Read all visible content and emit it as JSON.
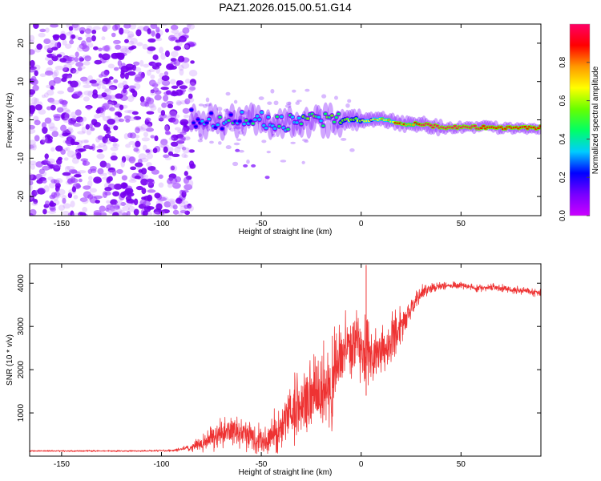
{
  "figure": {
    "title": "PAZ1.2026.015.00.51.G14"
  },
  "chart_data": [
    {
      "type": "heatmap",
      "title": "PAZ1.2026.015.00.51.G14",
      "xlabel": "Height of straight line (km)",
      "ylabel": "Frequency (Hz)",
      "xlim": [
        -166,
        90
      ],
      "ylim": [
        -25,
        25
      ],
      "xticks": [
        -150,
        -100,
        -50,
        0,
        50
      ],
      "yticks": [
        -20,
        -10,
        0,
        10,
        20
      ],
      "colorbar": {
        "label": "Normalized spectral amplitude",
        "range": [
          0.0,
          1.0
        ],
        "ticks": [
          "0.0",
          "0.2",
          "0.4",
          "0.6",
          "0.8"
        ],
        "colormap": [
          "#cc00ff",
          "#7700ff",
          "#0000ff",
          "#00ccff",
          "#00ff66",
          "#66ff00",
          "#ffff00",
          "#ff9900",
          "#ff0000",
          "#ff0066"
        ]
      },
      "features": [
        {
          "name": "noise",
          "x_range": [
            -166,
            -84
          ],
          "freq_range": [
            -25,
            25
          ],
          "amplitude": 0.1
        },
        {
          "name": "signal-trace",
          "points": [
            [
              -85,
              1
            ],
            [
              -80,
              -2
            ],
            [
              -75,
              0
            ],
            [
              -70,
              -1
            ],
            [
              -60,
              0
            ],
            [
              -50,
              0
            ],
            [
              -40,
              -1
            ],
            [
              -30,
              0
            ],
            [
              -20,
              0
            ],
            [
              -10,
              0
            ],
            [
              0,
              0
            ],
            [
              10,
              0
            ],
            [
              20,
              -1
            ],
            [
              30,
              -1
            ],
            [
              40,
              -2
            ],
            [
              50,
              -2
            ],
            [
              60,
              -2
            ],
            [
              70,
              -2
            ],
            [
              80,
              -2
            ],
            [
              90,
              -2
            ]
          ],
          "peak_amplitude": 1.0
        }
      ]
    },
    {
      "type": "line",
      "xlabel": "Height of straight line (km)",
      "ylabel": "SNR (10 * v/v)",
      "xlim": [
        -166,
        90
      ],
      "ylim": [
        0,
        4450
      ],
      "xticks": [
        -150,
        -100,
        -50,
        0,
        50
      ],
      "yticks": [
        1000,
        2000,
        3000,
        4000
      ],
      "series": [
        {
          "name": "SNR",
          "color": "#ee3333",
          "x": [
            -166,
            -150,
            -130,
            -110,
            -95,
            -85,
            -80,
            -75,
            -70,
            -65,
            -60,
            -55,
            -50,
            -45,
            -40,
            -35,
            -30,
            -25,
            -20,
            -15,
            -10,
            -5,
            0,
            5,
            10,
            15,
            20,
            25,
            30,
            35,
            40,
            45,
            50,
            55,
            60,
            65,
            70,
            75,
            80,
            85,
            90
          ],
          "y": [
            120,
            120,
            120,
            120,
            130,
            200,
            300,
            450,
            550,
            600,
            550,
            450,
            350,
            450,
            700,
            900,
            1200,
            1350,
            1500,
            1700,
            2300,
            2600,
            2500,
            2300,
            2450,
            2650,
            2950,
            3400,
            3750,
            3900,
            3950,
            3950,
            3950,
            3900,
            3880,
            3900,
            3880,
            3860,
            3850,
            3800,
            3780
          ],
          "noise": [
            15,
            15,
            15,
            15,
            20,
            60,
            150,
            250,
            300,
            320,
            300,
            280,
            280,
            350,
            500,
            600,
            700,
            700,
            750,
            800,
            700,
            650,
            600,
            600,
            500,
            450,
            350,
            250,
            150,
            100,
            80,
            70,
            70,
            70,
            70,
            70,
            70,
            70,
            70,
            70,
            70
          ]
        }
      ]
    }
  ]
}
